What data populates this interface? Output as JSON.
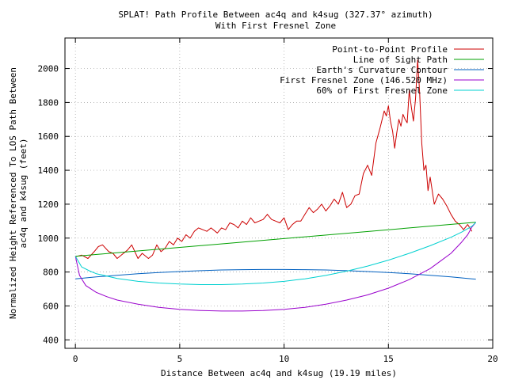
{
  "chart_data": {
    "type": "line",
    "title": "SPLAT! Path Profile Between ac4q and k4sug (327.37° azimuth)",
    "subtitle": "With First Fresnel Zone",
    "xlabel": "Distance Between ac4q and k4sug (19.19 miles)",
    "ylabel": "Normalized Height Referenced To LOS Path Between",
    "ylabel2": "ac4q and k4sug (feet)",
    "xlim": [
      -0.5,
      20
    ],
    "ylim": [
      350,
      2180
    ],
    "x_ticks": [
      "0",
      "5",
      "10",
      "15",
      "20"
    ],
    "y_ticks": [
      "400",
      "600",
      "800",
      "1000",
      "1200",
      "1400",
      "1600",
      "1800",
      "2000"
    ],
    "grid": true,
    "legend_position": "top-right",
    "series": [
      {
        "name": "Point-to-Point Profile",
        "color": "#cc0000",
        "x": [
          0,
          0.3,
          0.6,
          0.9,
          1.1,
          1.3,
          1.6,
          1.8,
          2.0,
          2.2,
          2.5,
          2.7,
          3.0,
          3.2,
          3.5,
          3.7,
          3.9,
          4.1,
          4.3,
          4.5,
          4.7,
          4.9,
          5.1,
          5.3,
          5.5,
          5.7,
          5.9,
          6.1,
          6.3,
          6.5,
          6.8,
          7.0,
          7.2,
          7.4,
          7.6,
          7.8,
          8.0,
          8.2,
          8.4,
          8.6,
          8.8,
          9.0,
          9.2,
          9.4,
          9.6,
          9.8,
          10.0,
          10.2,
          10.4,
          10.6,
          10.8,
          11.0,
          11.2,
          11.4,
          11.6,
          11.8,
          12.0,
          12.2,
          12.4,
          12.6,
          12.8,
          13.0,
          13.2,
          13.4,
          13.6,
          13.8,
          14.0,
          14.2,
          14.4,
          14.6,
          14.8,
          14.9,
          15.0,
          15.1,
          15.2,
          15.3,
          15.4,
          15.5,
          15.6,
          15.7,
          15.8,
          15.9,
          16.0,
          16.1,
          16.2,
          16.3,
          16.4,
          16.5,
          16.6,
          16.7,
          16.8,
          16.9,
          17.0,
          17.2,
          17.4,
          17.6,
          17.8,
          18.0,
          18.2,
          18.4,
          18.6,
          18.8,
          19.0
        ],
        "y": [
          890,
          900,
          880,
          920,
          950,
          960,
          920,
          910,
          880,
          900,
          930,
          960,
          880,
          910,
          880,
          900,
          960,
          920,
          940,
          980,
          960,
          1000,
          980,
          1020,
          1000,
          1040,
          1060,
          1050,
          1040,
          1060,
          1030,
          1060,
          1050,
          1090,
          1080,
          1060,
          1100,
          1080,
          1120,
          1090,
          1100,
          1110,
          1140,
          1110,
          1100,
          1090,
          1120,
          1050,
          1080,
          1100,
          1100,
          1140,
          1180,
          1150,
          1170,
          1200,
          1160,
          1190,
          1230,
          1200,
          1270,
          1180,
          1200,
          1250,
          1260,
          1380,
          1430,
          1370,
          1560,
          1650,
          1750,
          1720,
          1780,
          1690,
          1630,
          1530,
          1620,
          1700,
          1660,
          1730,
          1700,
          1680,
          1870,
          1770,
          1690,
          1820,
          2050,
          1850,
          1560,
          1400,
          1430,
          1280,
          1360,
          1200,
          1260,
          1230,
          1190,
          1140,
          1100,
          1080,
          1050,
          1080,
          1040
        ]
      },
      {
        "name": "Line of Sight Path",
        "color": "#00a000",
        "x": [
          0,
          19.19
        ],
        "y": [
          893,
          1093
        ]
      },
      {
        "name": "Earth's Curvature Contour",
        "color": "#0060c0",
        "x": [
          0,
          1,
          2,
          3,
          4,
          5,
          6,
          7,
          8,
          9,
          10,
          11,
          12,
          13,
          14,
          15,
          16,
          17,
          18,
          19,
          19.19
        ],
        "y": [
          760,
          771,
          781,
          790,
          797,
          803,
          808,
          812,
          814,
          815,
          815,
          814,
          812,
          808,
          803,
          797,
          790,
          781,
          771,
          760,
          758
        ]
      },
      {
        "name": "First Fresnel Zone (146.520 MHz)",
        "color": "#9900cc",
        "x": [
          0,
          0.2,
          0.5,
          1,
          1.5,
          2,
          3,
          4,
          5,
          6,
          7,
          8,
          9,
          10,
          11,
          12,
          13,
          14,
          15,
          16,
          17,
          17.5,
          18,
          18.5,
          18.8,
          19,
          19.19
        ],
        "y": [
          893,
          780,
          720,
          680,
          655,
          635,
          610,
          592,
          580,
          573,
          570,
          570,
          573,
          580,
          592,
          610,
          635,
          665,
          705,
          755,
          820,
          865,
          910,
          975,
          1020,
          1065,
          1093
        ]
      },
      {
        "name": "60% of First Fresnel Zone",
        "color": "#00d0d0",
        "x": [
          0,
          0.3,
          0.7,
          1,
          2,
          3,
          4,
          5,
          6,
          7,
          8,
          9,
          10,
          11,
          12,
          13,
          14,
          15,
          16,
          17,
          18,
          18.5,
          19,
          19.19
        ],
        "y": [
          893,
          830,
          805,
          790,
          762,
          745,
          735,
          729,
          726,
          726,
          729,
          735,
          745,
          760,
          780,
          805,
          835,
          870,
          910,
          955,
          1005,
          1035,
          1070,
          1093
        ]
      }
    ]
  }
}
